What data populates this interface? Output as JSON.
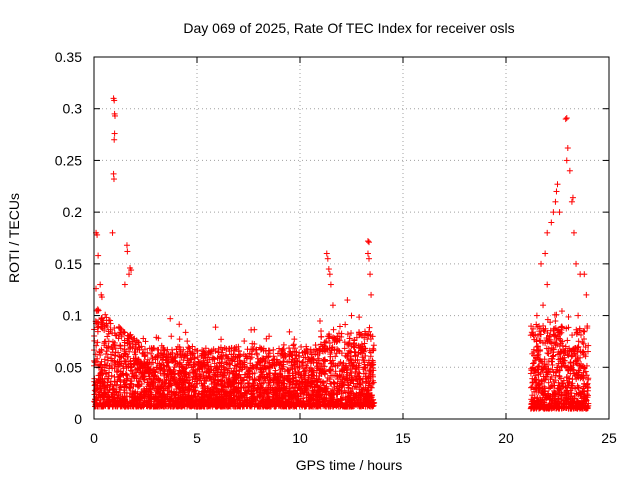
{
  "chart_data": {
    "type": "scatter",
    "title": "Day 069 of 2025, Rate Of TEC Index for receiver osls",
    "xlabel": "GPS time / hours",
    "ylabel": "ROTI / TECUs",
    "xlim": [
      0,
      25
    ],
    "ylim": [
      0,
      0.35
    ],
    "x_ticks": [
      0,
      5,
      10,
      15,
      20,
      25
    ],
    "x_tick_labels": [
      "0",
      "5",
      "10",
      "15",
      "20",
      "25"
    ],
    "y_ticks": [
      0,
      0.05,
      0.1,
      0.15,
      0.2,
      0.25,
      0.3,
      0.35
    ],
    "y_tick_labels": [
      "0",
      "0.05",
      "0.1",
      "0.15",
      "0.2",
      "0.25",
      "0.3",
      "0.35"
    ],
    "grid": true,
    "marker": "+",
    "color": "#ff0000",
    "segments": [
      {
        "x_start": 0.0,
        "x_end": 13.6,
        "base": 0.012,
        "typical_max": 0.07
      },
      {
        "x_start": 21.2,
        "x_end": 24.0,
        "base": 0.01,
        "typical_max": 0.09
      }
    ],
    "points": [
      [
        0.1,
        0.18
      ],
      [
        0.15,
        0.178
      ],
      [
        0.2,
        0.158
      ],
      [
        0.3,
        0.13
      ],
      [
        0.35,
        0.12
      ],
      [
        0.95,
        0.31
      ],
      [
        0.98,
        0.308
      ],
      [
        1.0,
        0.295
      ],
      [
        1.02,
        0.293
      ],
      [
        1.0,
        0.276
      ],
      [
        0.98,
        0.27
      ],
      [
        0.95,
        0.237
      ],
      [
        0.97,
        0.232
      ],
      [
        0.9,
        0.18
      ],
      [
        1.6,
        0.168
      ],
      [
        1.62,
        0.162
      ],
      [
        1.75,
        0.146
      ],
      [
        1.8,
        0.144
      ],
      [
        1.7,
        0.14
      ],
      [
        1.5,
        0.13
      ],
      [
        3.7,
        0.097
      ],
      [
        3.75,
        0.08
      ],
      [
        2.5,
        0.075
      ],
      [
        6.0,
        0.05
      ],
      [
        8.5,
        0.08
      ],
      [
        10.3,
        0.07
      ],
      [
        11.3,
        0.16
      ],
      [
        11.35,
        0.155
      ],
      [
        11.4,
        0.145
      ],
      [
        11.45,
        0.14
      ],
      [
        11.5,
        0.13
      ],
      [
        11.6,
        0.11
      ],
      [
        12.3,
        0.115
      ],
      [
        12.5,
        0.1
      ],
      [
        13.3,
        0.172
      ],
      [
        13.35,
        0.171
      ],
      [
        13.3,
        0.16
      ],
      [
        13.35,
        0.155
      ],
      [
        13.4,
        0.14
      ],
      [
        13.45,
        0.12
      ],
      [
        21.5,
        0.1
      ],
      [
        21.7,
        0.15
      ],
      [
        21.9,
        0.16
      ],
      [
        22.0,
        0.18
      ],
      [
        22.2,
        0.19
      ],
      [
        22.3,
        0.2
      ],
      [
        22.4,
        0.21
      ],
      [
        22.5,
        0.227
      ],
      [
        22.45,
        0.22
      ],
      [
        22.6,
        0.2
      ],
      [
        22.9,
        0.29
      ],
      [
        22.95,
        0.291
      ],
      [
        23.0,
        0.262
      ],
      [
        22.95,
        0.25
      ],
      [
        23.1,
        0.24
      ],
      [
        23.2,
        0.21
      ],
      [
        23.25,
        0.214
      ],
      [
        23.3,
        0.18
      ],
      [
        23.4,
        0.15
      ],
      [
        23.6,
        0.14
      ],
      [
        23.8,
        0.14
      ],
      [
        23.9,
        0.12
      ],
      [
        22.0,
        0.13
      ],
      [
        21.8,
        0.09
      ],
      [
        23.5,
        0.1
      ]
    ]
  }
}
